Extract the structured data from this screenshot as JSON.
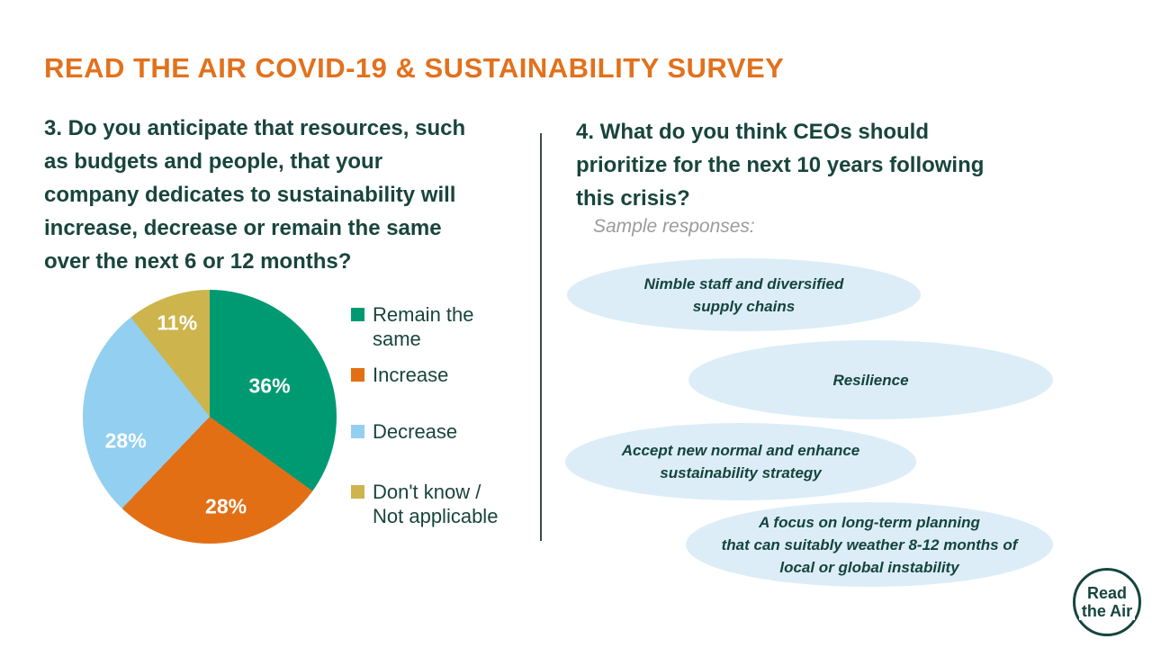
{
  "title": "READ THE AIR COVID-19 & SUSTAINABILITY SURVEY",
  "question3": {
    "text": "3. Do you anticipate that resources, such\nas budgets and people, that your\ncompany dedicates to sustainability will\nincrease, decrease or remain the same\nover the next 6 or 12 months?"
  },
  "question4": {
    "text": "4. What do you think CEOs should\nprioritize for the next 10 years following\nthis crisis?",
    "subtitle": "Sample responses:",
    "responses": [
      "Nimble staff and diversified\nsupply chains",
      "Resilience",
      "Accept new normal and enhance\nsustainability strategy",
      "A focus on long-term planning\nthat can suitably weather 8-12 months of\nlocal or global instability"
    ]
  },
  "chart_data": {
    "type": "pie",
    "title": "Do you anticipate that resources your company dedicates to sustainability will increase, decrease or remain the same over the next 6 or 12 months?",
    "labels": [
      "Remain the same",
      "Increase",
      "Decrease",
      "Don't know / Not applicable"
    ],
    "values": [
      36,
      28,
      28,
      11
    ],
    "value_labels": [
      "36%",
      "28%",
      "28%",
      "11%"
    ],
    "colors": [
      "#009A72",
      "#E36F15",
      "#92CFF0",
      "#CDB44D"
    ],
    "start_angle_deg": 0,
    "direction": "clockwise",
    "legend_position": "right"
  },
  "colors": {
    "title_orange": "#E2711D",
    "heading_teal": "#18453B",
    "divider": "#3C4B4A",
    "bubble_fill": "#DCEDF8",
    "bubble_text": "#14443C",
    "muted_gray": "#9B9B9B",
    "logo_teal": "#17453E",
    "pie_label_white": "#FFFFFF"
  },
  "logo": {
    "line1": "Read",
    "line2": "the Air"
  }
}
